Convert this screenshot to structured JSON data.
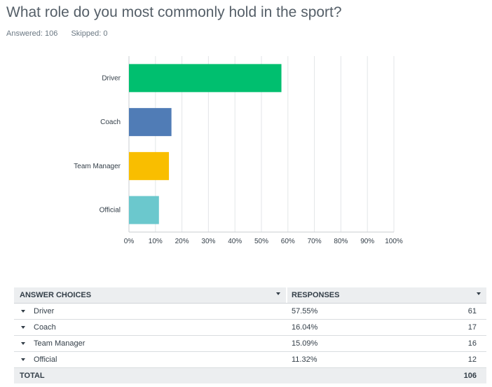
{
  "question": {
    "title": "What role do you most commonly hold in the sport?",
    "answered_label": "Answered: 106",
    "skipped_label": "Skipped: 0"
  },
  "chart_data": {
    "type": "bar",
    "orientation": "horizontal",
    "categories": [
      "Driver",
      "Coach",
      "Team Manager",
      "Official"
    ],
    "values": [
      57.55,
      16.04,
      15.09,
      11.32
    ],
    "colors": [
      "#00bf6f",
      "#507cb6",
      "#f9be00",
      "#6bc8cd"
    ],
    "xlim": [
      0,
      100
    ],
    "x_ticks": [
      "0%",
      "10%",
      "20%",
      "30%",
      "40%",
      "50%",
      "60%",
      "70%",
      "80%",
      "90%",
      "100%"
    ],
    "grid": true
  },
  "table": {
    "headers": {
      "choices": "ANSWER CHOICES",
      "responses": "RESPONSES"
    },
    "rows": [
      {
        "label": "Driver",
        "percent": "57.55%",
        "count": "61"
      },
      {
        "label": "Coach",
        "percent": "16.04%",
        "count": "17"
      },
      {
        "label": "Team Manager",
        "percent": "15.09%",
        "count": "16"
      },
      {
        "label": "Official",
        "percent": "11.32%",
        "count": "12"
      }
    ],
    "total": {
      "label": "TOTAL",
      "count": "106"
    }
  }
}
